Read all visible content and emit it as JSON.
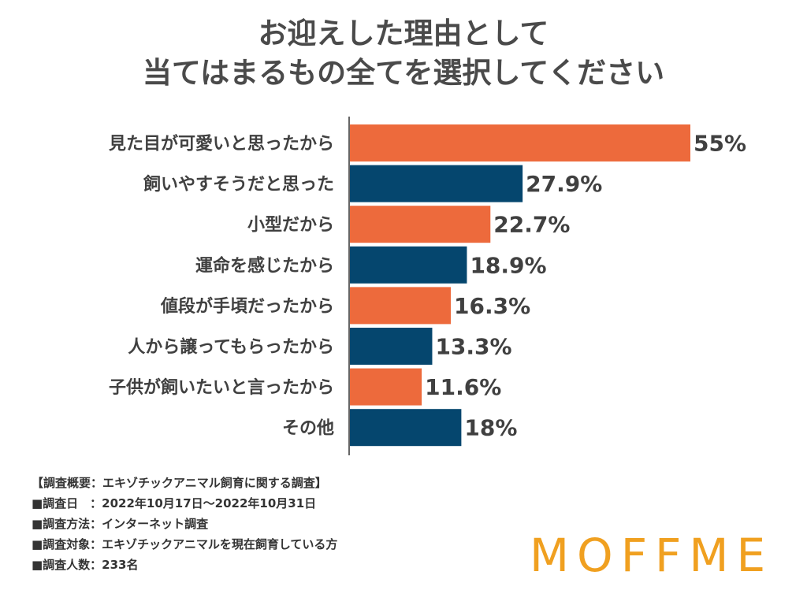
{
  "title": {
    "line1": "お迎えした理由として",
    "line2": "当てはまるもの全てを選択してください"
  },
  "chart_data": {
    "type": "bar",
    "orientation": "horizontal",
    "categories": [
      "見た目が可愛いと思ったから",
      "飼いやすそうだと思った",
      "小型だから",
      "運命を感じたから",
      "値段が手頃だったから",
      "人から譲ってもらったから",
      "子供が飼いたいと言ったから",
      "その他"
    ],
    "values": [
      55,
      27.9,
      22.7,
      18.9,
      16.3,
      13.3,
      11.6,
      18
    ],
    "value_labels": [
      "55%",
      "27.9%",
      "22.7%",
      "18.9%",
      "16.3%",
      "13.3%",
      "11.6%",
      "18%"
    ],
    "bar_colors": [
      "#ed6a3c",
      "#05466e",
      "#ed6a3c",
      "#05466e",
      "#ed6a3c",
      "#05466e",
      "#ed6a3c",
      "#05466e"
    ],
    "xlim": [
      0,
      55
    ],
    "xlabel": "",
    "ylabel": "",
    "grid": false,
    "legend": "none"
  },
  "notes": {
    "line1": "【調査概要：エキゾチックアニマル飼育に関する調査】",
    "line2": "■調査日　：2022年10月17日〜2022年10月31日",
    "line3": "■調査方法：インターネット調査",
    "line4": "■調査対象：エキゾチックアニマルを現在飼育している方",
    "line5": "■調査人数：233名"
  },
  "logo": {
    "text": "MOFFME",
    "color": "#f0a020"
  }
}
